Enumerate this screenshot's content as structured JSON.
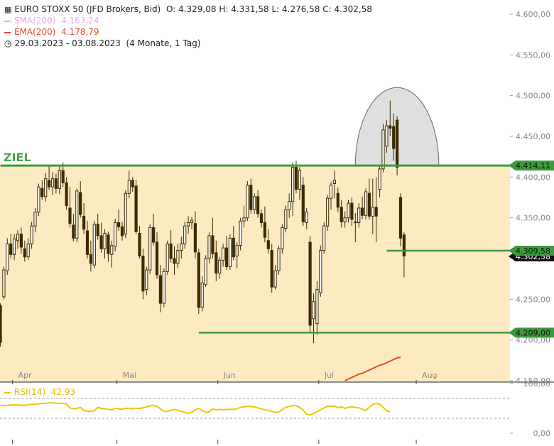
{
  "header": {
    "instrument": "EURO STOXX 50 (JFD Brokers, Bid)",
    "ohlc": "O: 4.329,08  H: 4.331,58  L: 4.276,58  C: 4.302,58",
    "sma_label": "SMA(200)",
    "sma_value": "4.163,24",
    "ema_label": "EMA(200)",
    "ema_value": "4.178,79",
    "range": "29.03.2023 - 03.08.2023",
    "range_note": "(4 Monate, 1 Tag)"
  },
  "colors": {
    "candle": "#3d2a00",
    "zone_fill": "#fdeac0",
    "level_line": "#3c9a3c",
    "sma": "#f1a6e6",
    "ema": "#e8492a",
    "rsi": "#f2c500",
    "arc_fill": "#dcdcdc"
  },
  "chart_data": [
    {
      "type": "candlestick",
      "title": "EURO STOXX 50 (JFD Brokers, Bid)",
      "ylim": [
        4150,
        4610
      ],
      "y_ticks": [
        "4.150,00",
        "4.200,00",
        "4.250,00",
        "4.300,00",
        "4.350,00",
        "4.400,00",
        "4.450,00",
        "4.500,00",
        "4.550,00",
        "4.600,00"
      ],
      "y_tick_values": [
        4150,
        4200,
        4250,
        4300,
        4350,
        4400,
        4450,
        4500,
        4550,
        4600
      ],
      "x_labels": [
        "Apr",
        "Mai",
        "Jun",
        "Jul",
        "Aug"
      ],
      "x_label_index": [
        3.5,
        33.5,
        62.5,
        91.5,
        119.5
      ],
      "annotation_text": "ZIEL",
      "levels": [
        {
          "value": 4414.11,
          "label": "4.414,11",
          "start_index": 0
        },
        {
          "value": 4309.58,
          "label": "4.309,58",
          "start_index": 111
        },
        {
          "value": 4209.0,
          "label": "4.209,00",
          "start_index": 57
        }
      ],
      "current_price": {
        "value": 4302.58,
        "label": "4.302,58"
      },
      "zone": [
        4150,
        4414.11
      ],
      "arc": {
        "start_index": 102,
        "end_index": 126,
        "peak_index": 116,
        "peak_value": 4510
      },
      "ema_segment": {
        "start_index": 99,
        "values": [
          4150,
          4152,
          4154,
          4156,
          4158,
          4159,
          4161,
          4163,
          4165,
          4167,
          4169,
          4170,
          4172,
          4174,
          4176,
          4178,
          4178.79
        ]
      },
      "candles": [
        [
          4242,
          4245,
          4192,
          4197
        ],
        [
          4253,
          4290,
          4250,
          4286
        ],
        [
          4285,
          4325,
          4280,
          4318
        ],
        [
          4318,
          4330,
          4300,
          4305
        ],
        [
          4305,
          4330,
          4298,
          4324
        ],
        [
          4322,
          4335,
          4312,
          4330
        ],
        [
          4330,
          4338,
          4306,
          4314
        ],
        [
          4312,
          4322,
          4296,
          4302
        ],
        [
          4302,
          4325,
          4298,
          4318
        ],
        [
          4318,
          4345,
          4312,
          4340
        ],
        [
          4340,
          4362,
          4332,
          4357
        ],
        [
          4357,
          4392,
          4352,
          4388
        ],
        [
          4386,
          4396,
          4372,
          4376
        ],
        [
          4376,
          4405,
          4370,
          4398
        ],
        [
          4396,
          4414,
          4384,
          4388
        ],
        [
          4388,
          4406,
          4378,
          4398
        ],
        [
          4398,
          4404,
          4380,
          4386
        ],
        [
          4386,
          4415,
          4379,
          4408
        ],
        [
          4408,
          4418,
          4388,
          4393
        ],
        [
          4393,
          4400,
          4360,
          4365
        ],
        [
          4362,
          4388,
          4338,
          4343
        ],
        [
          4341,
          4355,
          4321,
          4325
        ],
        [
          4325,
          4386,
          4320,
          4383
        ],
        [
          4381,
          4395,
          4350,
          4354
        ],
        [
          4352,
          4368,
          4330,
          4336
        ],
        [
          4334,
          4346,
          4300,
          4305
        ],
        [
          4305,
          4322,
          4284,
          4294
        ],
        [
          4292,
          4346,
          4288,
          4342
        ],
        [
          4342,
          4355,
          4323,
          4328
        ],
        [
          4328,
          4344,
          4307,
          4312
        ],
        [
          4312,
          4336,
          4300,
          4331
        ],
        [
          4329,
          4333,
          4296,
          4306
        ],
        [
          4305,
          4322,
          4289,
          4316
        ],
        [
          4315,
          4349,
          4309,
          4344
        ],
        [
          4344,
          4360,
          4334,
          4339
        ],
        [
          4339,
          4345,
          4322,
          4328
        ],
        [
          4330,
          4384,
          4325,
          4380
        ],
        [
          4380,
          4408,
          4374,
          4396
        ],
        [
          4396,
          4400,
          4382,
          4388
        ],
        [
          4389,
          4397,
          4330,
          4333
        ],
        [
          4331,
          4340,
          4300,
          4303
        ],
        [
          4303,
          4312,
          4250,
          4260
        ],
        [
          4262,
          4290,
          4255,
          4286
        ],
        [
          4286,
          4342,
          4281,
          4338
        ],
        [
          4338,
          4355,
          4316,
          4320
        ],
        [
          4320,
          4332,
          4275,
          4280
        ],
        [
          4279,
          4292,
          4234,
          4245
        ],
        [
          4245,
          4288,
          4240,
          4284
        ],
        [
          4284,
          4322,
          4280,
          4318
        ],
        [
          4318,
          4335,
          4295,
          4300
        ],
        [
          4300,
          4315,
          4280,
          4294
        ],
        [
          4294,
          4318,
          4288,
          4310
        ],
        [
          4310,
          4327,
          4300,
          4318
        ],
        [
          4318,
          4345,
          4312,
          4340
        ],
        [
          4340,
          4352,
          4330,
          4344
        ],
        [
          4344,
          4351,
          4336,
          4347
        ],
        [
          4343,
          4358,
          4300,
          4308
        ],
        [
          4307,
          4312,
          4232,
          4240
        ],
        [
          4240,
          4278,
          4235,
          4270
        ],
        [
          4268,
          4304,
          4265,
          4300
        ],
        [
          4300,
          4332,
          4294,
          4328
        ],
        [
          4328,
          4350,
          4300,
          4306
        ],
        [
          4307,
          4322,
          4272,
          4282
        ],
        [
          4282,
          4302,
          4275,
          4298
        ],
        [
          4298,
          4318,
          4290,
          4313
        ],
        [
          4313,
          4328,
          4286,
          4290
        ],
        [
          4290,
          4330,
          4286,
          4325
        ],
        [
          4325,
          4340,
          4298,
          4302
        ],
        [
          4303,
          4320,
          4288,
          4316
        ],
        [
          4316,
          4350,
          4310,
          4346
        ],
        [
          4346,
          4365,
          4338,
          4350
        ],
        [
          4350,
          4395,
          4346,
          4390
        ],
        [
          4390,
          4398,
          4355,
          4360
        ],
        [
          4360,
          4380,
          4355,
          4376
        ],
        [
          4376,
          4384,
          4350,
          4355
        ],
        [
          4355,
          4360,
          4338,
          4344
        ],
        [
          4344,
          4364,
          4320,
          4326
        ],
        [
          4322,
          4336,
          4306,
          4312
        ],
        [
          4310,
          4318,
          4258,
          4265
        ],
        [
          4265,
          4292,
          4262,
          4285
        ],
        [
          4285,
          4316,
          4280,
          4312
        ],
        [
          4312,
          4342,
          4306,
          4338
        ],
        [
          4337,
          4365,
          4332,
          4360
        ],
        [
          4360,
          4380,
          4350,
          4370
        ],
        [
          4370,
          4418,
          4352,
          4412
        ],
        [
          4412,
          4420,
          4380,
          4385
        ],
        [
          4385,
          4412,
          4372,
          4408
        ],
        [
          4390,
          4400,
          4340,
          4345
        ],
        [
          4344,
          4362,
          4336,
          4357
        ],
        [
          4320,
          4328,
          4210,
          4218
        ],
        [
          4226,
          4257,
          4196,
          4247
        ],
        [
          4220,
          4272,
          4206,
          4262
        ],
        [
          4258,
          4316,
          4253,
          4310
        ],
        [
          4310,
          4345,
          4306,
          4340
        ],
        [
          4340,
          4378,
          4334,
          4374
        ],
        [
          4374,
          4394,
          4360,
          4390
        ],
        [
          4392,
          4408,
          4374,
          4396
        ],
        [
          4380,
          4387,
          4357,
          4363
        ],
        [
          4363,
          4372,
          4338,
          4345
        ],
        [
          4345,
          4358,
          4338,
          4350
        ],
        [
          4350,
          4372,
          4344,
          4368
        ],
        [
          4368,
          4375,
          4340,
          4348
        ],
        [
          4345,
          4356,
          4320,
          4344
        ],
        [
          4344,
          4368,
          4338,
          4362
        ],
        [
          4362,
          4376,
          4348,
          4353
        ],
        [
          4353,
          4386,
          4348,
          4382
        ],
        [
          4380,
          4398,
          4348,
          4352
        ],
        [
          4352,
          4398,
          4330,
          4363
        ],
        [
          4363,
          4400,
          4320,
          4352
        ],
        [
          4385,
          4415,
          4375,
          4410
        ],
        [
          4410,
          4465,
          4406,
          4458
        ],
        [
          4438,
          4470,
          4430,
          4463
        ],
        [
          4463,
          4494,
          4450,
          4460
        ],
        [
          4462,
          4478,
          4420,
          4435
        ],
        [
          4470,
          4475,
          4402,
          4412
        ],
        [
          4375,
          4380,
          4315,
          4325
        ],
        [
          4329,
          4332,
          4277,
          4303
        ]
      ]
    },
    {
      "type": "line",
      "title": "RSI(14)",
      "legend_label": "RSI(14)",
      "legend_value": "42,93",
      "ylim": [
        0,
        100
      ],
      "y_ticks": [
        "0,00",
        "100,00"
      ],
      "y_tick_values": [
        0,
        100
      ],
      "reference_lines": [
        70,
        30
      ],
      "values": [
        55,
        55,
        56,
        57,
        57,
        57,
        56,
        56,
        57,
        58,
        58,
        59,
        60,
        60,
        61,
        61,
        60,
        60,
        60,
        59,
        51,
        49,
        50,
        52,
        46,
        44,
        44,
        45,
        52,
        50,
        49,
        48,
        47,
        50,
        49,
        48,
        50,
        50,
        49,
        50,
        50,
        51,
        53,
        55,
        56,
        54,
        49,
        44,
        44,
        46,
        48,
        46,
        44,
        42,
        40,
        42,
        47,
        50,
        46,
        42,
        43,
        49,
        47,
        48,
        47,
        48,
        48,
        48,
        49,
        52,
        53,
        54,
        54,
        53,
        51,
        49,
        47,
        46,
        44,
        42,
        43,
        47,
        52,
        54,
        56,
        55,
        52,
        47,
        38,
        37,
        40,
        43,
        47,
        51,
        54,
        55,
        54,
        52,
        53,
        50,
        52,
        53,
        52,
        51,
        48,
        46,
        52,
        58,
        60,
        58,
        52,
        45,
        43
      ]
    }
  ]
}
